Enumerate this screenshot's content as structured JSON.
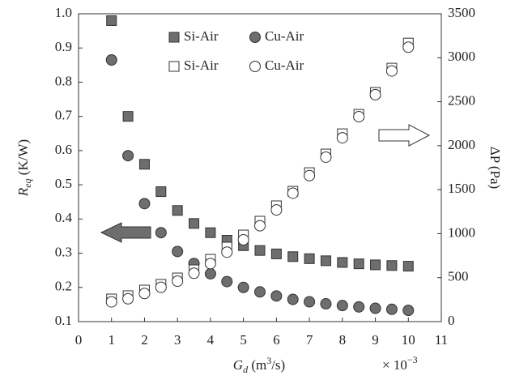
{
  "chart_data": {
    "type": "scatter",
    "x_label": [
      "G",
      "d",
      " (m",
      "3",
      "/s)"
    ],
    "y_label": [
      "R",
      "eq",
      " (K/W)"
    ],
    "y2_label": "ΔP (Pa)",
    "x_multiplier": [
      "× 10",
      "−3"
    ],
    "x": [
      1,
      1.5,
      2,
      2.5,
      3,
      3.5,
      4,
      4.5,
      5,
      5.5,
      6,
      6.5,
      7,
      7.5,
      8,
      8.5,
      9,
      9.5,
      10
    ],
    "series": [
      {
        "name": "Si-Air",
        "color": "#6e6e6e",
        "marker": "square",
        "axis": "y",
        "values": [
          0.98,
          0.7,
          0.56,
          0.48,
          0.425,
          0.387,
          0.36,
          0.338,
          0.322,
          0.308,
          0.298,
          0.29,
          0.284,
          0.278,
          0.273,
          0.269,
          0.266,
          0.264,
          0.262
        ]
      },
      {
        "name": "Cu-Air",
        "color": "#6e6e6e",
        "marker": "circle",
        "axis": "y",
        "values": [
          0.865,
          0.585,
          0.445,
          0.36,
          0.305,
          0.27,
          0.24,
          0.217,
          0.2,
          0.187,
          0.175,
          0.165,
          0.158,
          0.152,
          0.147,
          0.143,
          0.139,
          0.136,
          0.133
        ]
      },
      {
        "name": "Si-Air",
        "color": "#ffffff",
        "marker": "square",
        "axis": "y2",
        "values": [
          258,
          295,
          359,
          424,
          497,
          589,
          709,
          847,
          985,
          1142,
          1317,
          1482,
          1694,
          1906,
          2136,
          2357,
          2606,
          2882,
          3167
        ]
      },
      {
        "name": "Cu-Air",
        "color": "#ffffff",
        "marker": "circle",
        "axis": "y2",
        "values": [
          225,
          260,
          320,
          390,
          460,
          550,
          660,
          790,
          930,
          1090,
          1270,
          1460,
          1660,
          1870,
          2090,
          2330,
          2580,
          2850,
          3120
        ]
      }
    ],
    "xlim": [
      0,
      11
    ],
    "xticks": [
      0,
      1,
      2,
      3,
      4,
      5,
      6,
      7,
      8,
      9,
      10,
      11
    ],
    "ylim": [
      0.1,
      1
    ],
    "yticks": [
      0.1,
      0.2,
      0.3,
      0.4,
      0.5,
      0.6,
      0.7,
      0.8,
      0.9,
      {
        "value": 1,
        "label": "1.0"
      }
    ],
    "y2lim": [
      0,
      3500
    ],
    "y2ticks": [
      0,
      500,
      1000,
      1500,
      2000,
      2500,
      3000,
      3500
    ],
    "grid": false
  }
}
